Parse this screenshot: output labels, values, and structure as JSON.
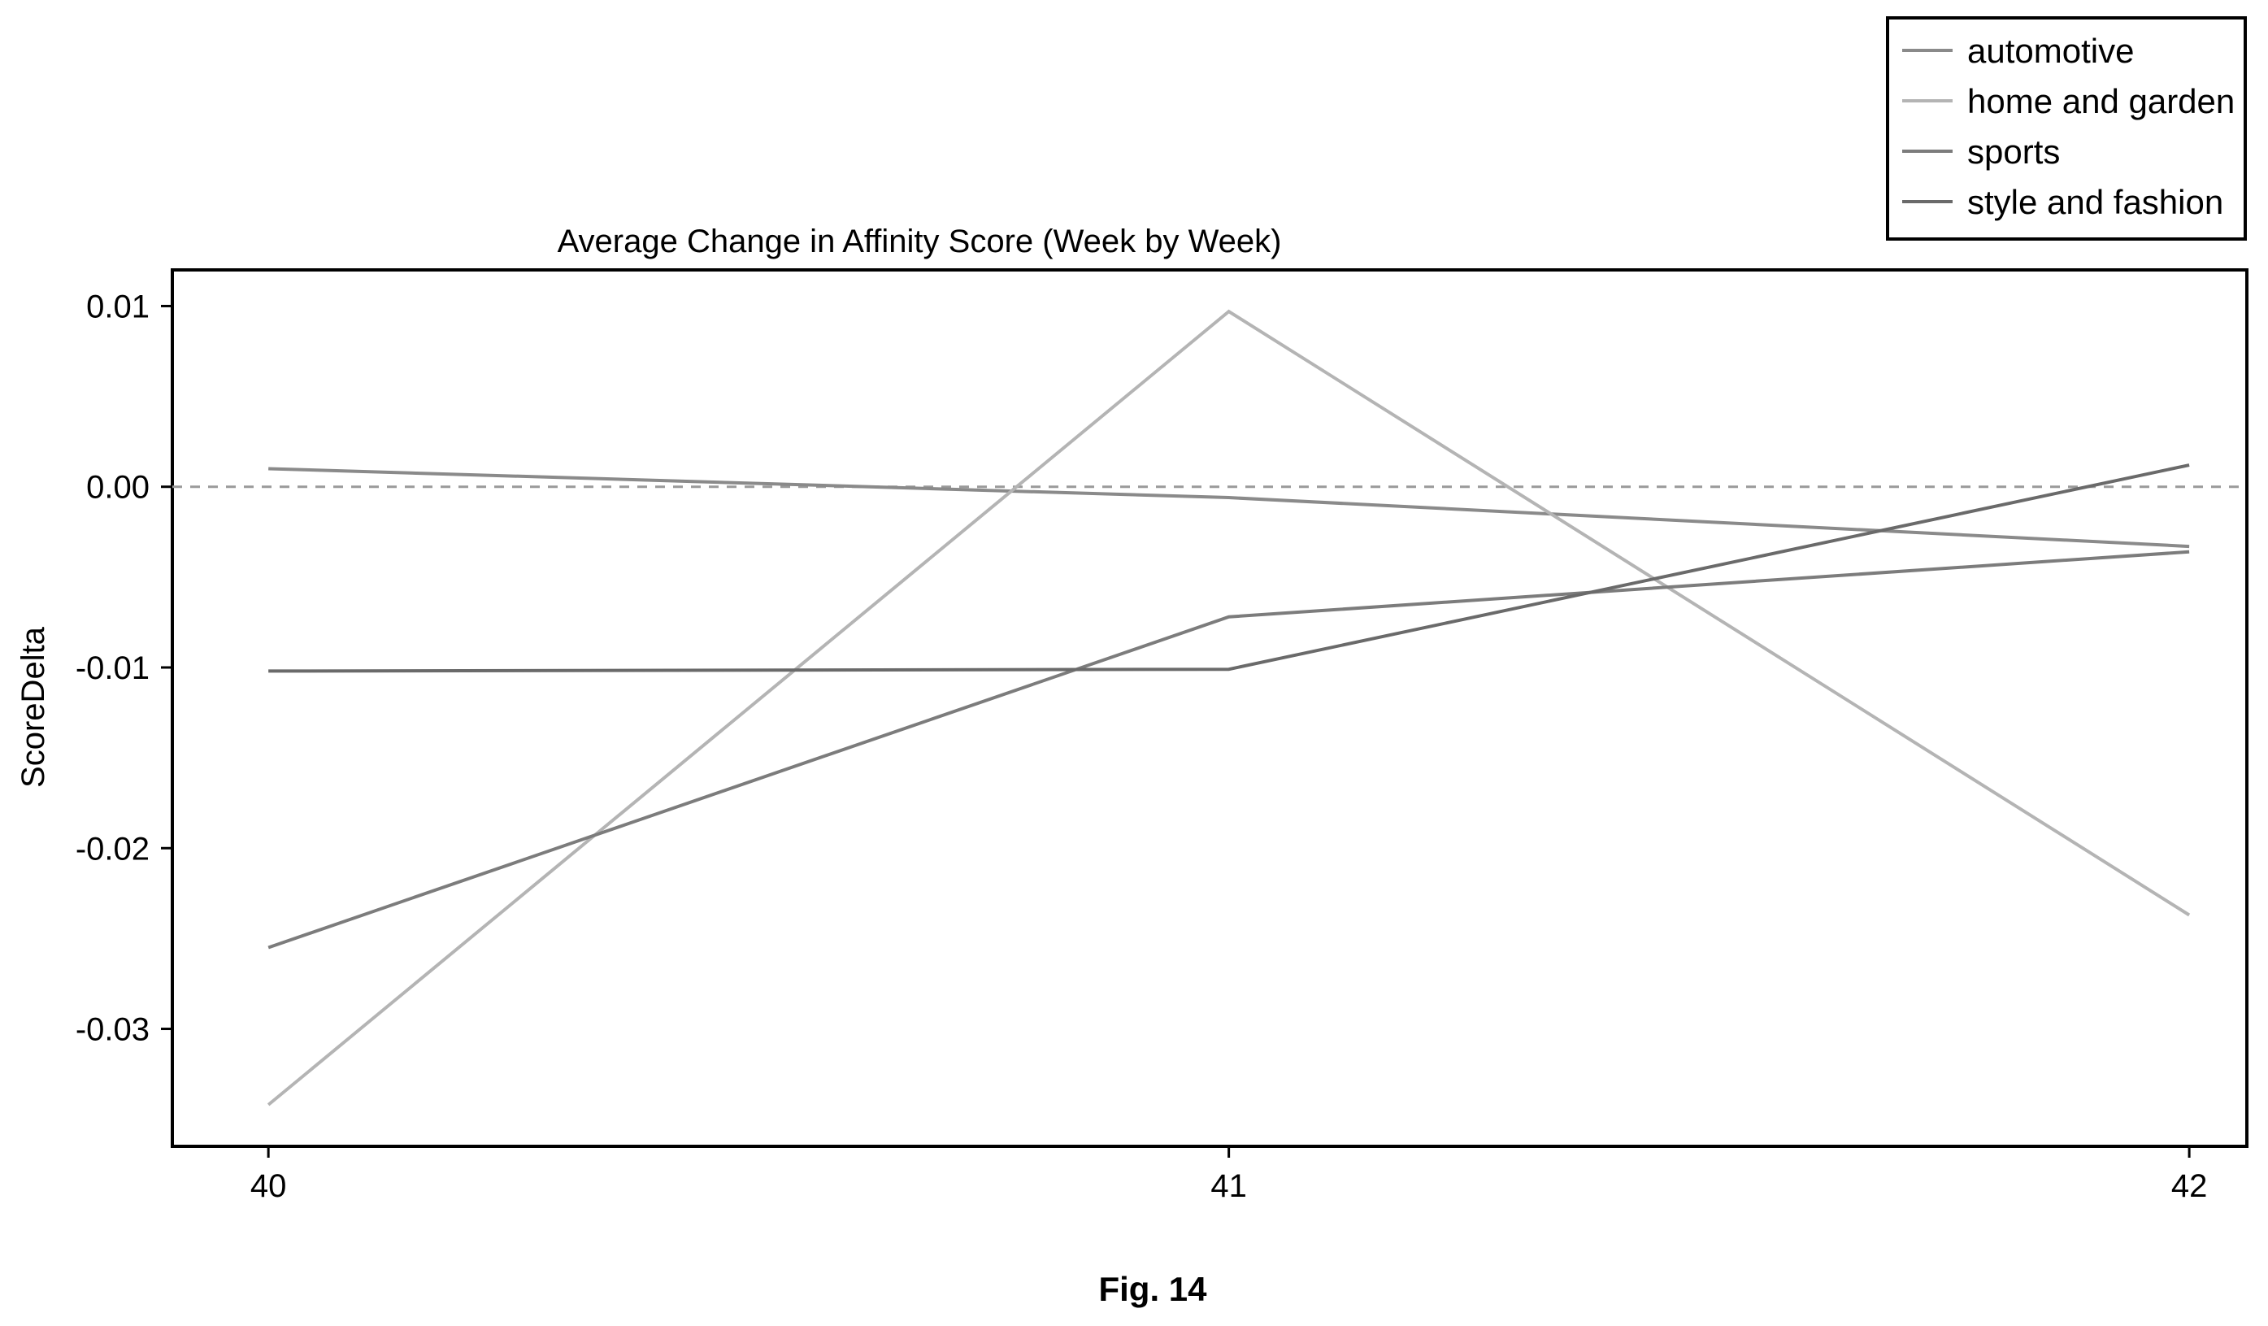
{
  "chart_data": {
    "type": "line",
    "title": "Average Change in Affinity Score (Week by Week)",
    "xlabel": "",
    "ylabel": "ScoreDelta",
    "x": [
      40,
      41,
      42
    ],
    "x_ticks": [
      "40",
      "41",
      "42"
    ],
    "xlim": [
      39.9,
      42.06
    ],
    "ylim": [
      -0.0365,
      0.012
    ],
    "y_ticks": [
      "0.01",
      "0.00",
      "-0.01",
      "-0.02",
      "-0.03"
    ],
    "y_tick_values": [
      0.01,
      0.0,
      -0.01,
      -0.02,
      -0.03
    ],
    "reference_line": {
      "y": 0.0,
      "style": "dashed"
    },
    "grid": false,
    "legend_position": "top-right, outside plot",
    "series": [
      {
        "name": "automotive",
        "values": [
          0.001,
          -0.0006,
          -0.0033
        ],
        "color": "#8a8a8a"
      },
      {
        "name": "home and garden",
        "values": [
          -0.0342,
          0.0097,
          -0.0237
        ],
        "color": "#b4b4b4"
      },
      {
        "name": "sports",
        "values": [
          -0.0255,
          -0.0072,
          -0.0036
        ],
        "color": "#7c7c7c"
      },
      {
        "name": "style and fashion",
        "values": [
          -0.0102,
          -0.0101,
          0.0012
        ],
        "color": "#6a6a6a"
      }
    ]
  },
  "caption": "Fig. 14"
}
